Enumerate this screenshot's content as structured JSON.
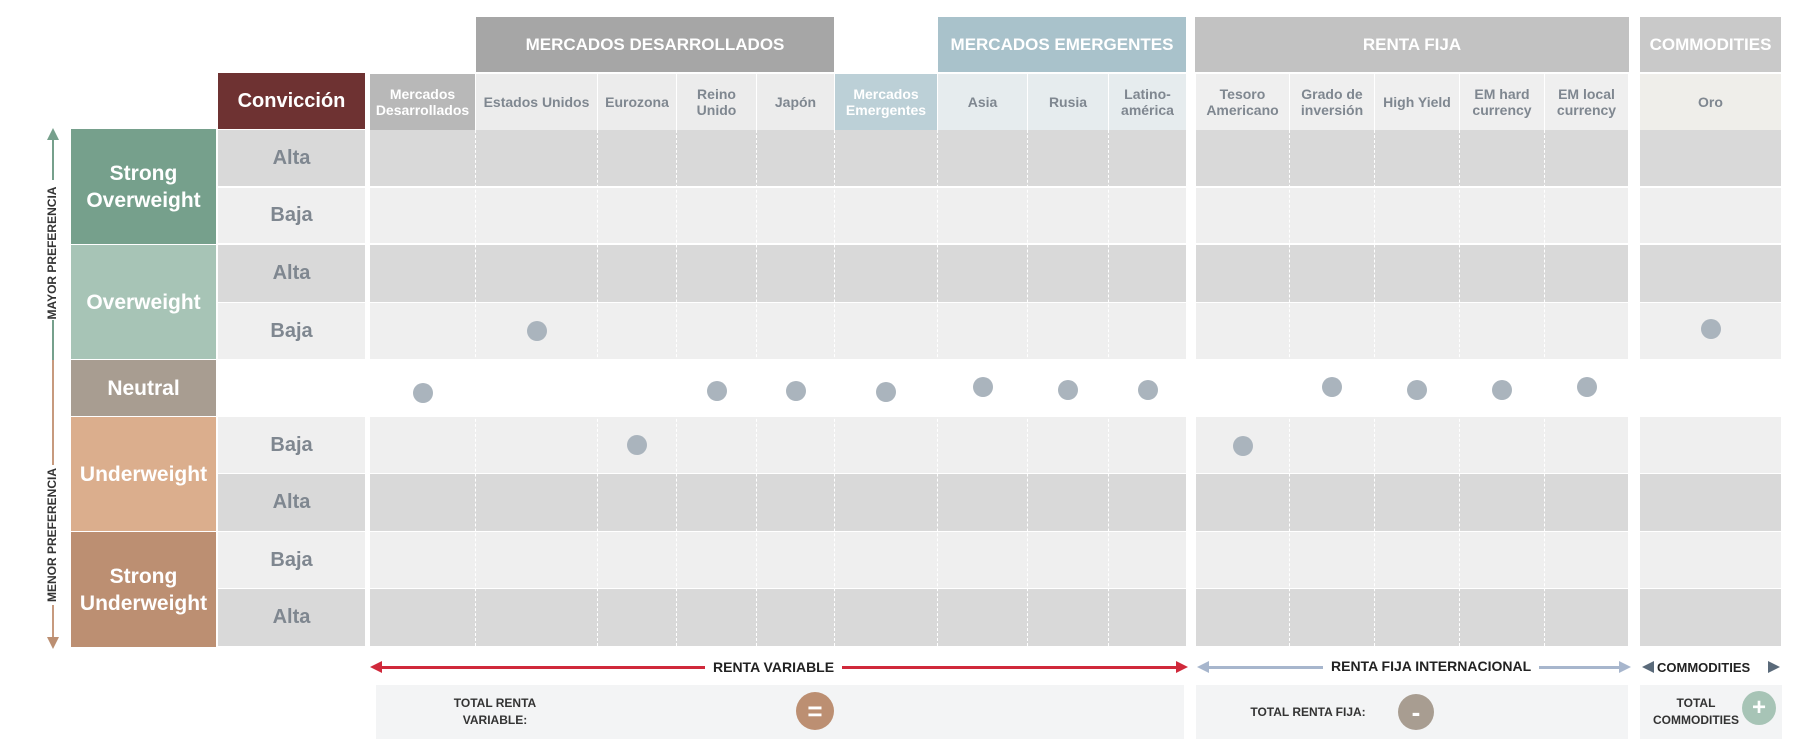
{
  "groups": {
    "mercados_desarrollados": "MERCADOS DESARROLLADOS",
    "mercados_emergentes": "MERCADOS EMERGENTES",
    "renta_fija": "RENTA FIJA",
    "commodities": "COMMODITIES"
  },
  "conviccion_header": "Convicción",
  "columns": [
    "Mercados\nDesarrollados",
    "Estados Unidos",
    "Eurozona",
    "Reino\nUnido",
    "Japón",
    "Mercados\nEmergentes",
    "Asia",
    "Rusia",
    "Latino-\namérica",
    "Tesoro\nAmericano",
    "Grado de\ninversión",
    "High Yield",
    "EM hard\ncurrency",
    "EM local\ncurrency",
    "Oro"
  ],
  "categories": {
    "strong_overweight": "Strong\nOverweight",
    "overweight": "Overweight",
    "neutral": "Neutral",
    "underweight": "Underweight",
    "strong_underweight": "Strong\nUnderweight"
  },
  "conviction_rows": [
    "Alta",
    "Baja",
    "Alta",
    "Baja",
    "",
    "Baja",
    "Alta",
    "Baja",
    "Alta"
  ],
  "side_labels": {
    "mayor": "MAYOR PREFERENCIA",
    "menor": "MENOR PREFERENCIA"
  },
  "positions": [
    {
      "asset": "Mercados Desarrollados",
      "row": 4
    },
    {
      "asset": "Estados Unidos",
      "row": 3
    },
    {
      "asset": "Eurozona",
      "row": 5
    },
    {
      "asset": "Reino Unido",
      "row": 4
    },
    {
      "asset": "Japón",
      "row": 4
    },
    {
      "asset": "Mercados Emergentes",
      "row": 4
    },
    {
      "asset": "Asia",
      "row": 4
    },
    {
      "asset": "Rusia",
      "row": 4
    },
    {
      "asset": "Latinoamérica",
      "row": 4
    },
    {
      "asset": "Tesoro Americano",
      "row": 5
    },
    {
      "asset": "Grado de inversión",
      "row": 4
    },
    {
      "asset": "High Yield",
      "row": 4
    },
    {
      "asset": "EM hard currency",
      "row": 4
    },
    {
      "asset": "EM local currency",
      "row": 4
    },
    {
      "asset": "Oro",
      "row": 3
    }
  ],
  "arrows": {
    "renta_variable": "RENTA VARIABLE",
    "renta_fija_internacional": "RENTA FIJA INTERNACIONAL",
    "commodities": "COMMODITIES"
  },
  "totals": {
    "renta_variable_label": "TOTAL RENTA\nVARIABLE:",
    "renta_variable_symbol": "=",
    "renta_fija_label": "TOTAL RENTA FIJA:",
    "renta_fija_symbol": "-",
    "commodities_label": "TOTAL\nCOMMODITIES",
    "commodities_symbol": "+"
  },
  "colors": {
    "strong_overweight": "#76a08c",
    "overweight": "#a7c4b6",
    "neutral": "#a89d91",
    "underweight": "#dbae8d",
    "strong_underweight": "#bc8f72",
    "conviccion": "#6e3232",
    "dev_markets": "#a6a6a6",
    "em_markets": "#a9c2cb",
    "renta_fija": "#c2c2c2",
    "commodities": "#c9c9c9",
    "dot": "#aab4bd",
    "badge_equal": "#bc8f72",
    "badge_minus": "#a89d91",
    "badge_plus": "#a7c4b6",
    "arrow_rv": "#d0293b",
    "arrow_rf": "#a7b6cd"
  }
}
